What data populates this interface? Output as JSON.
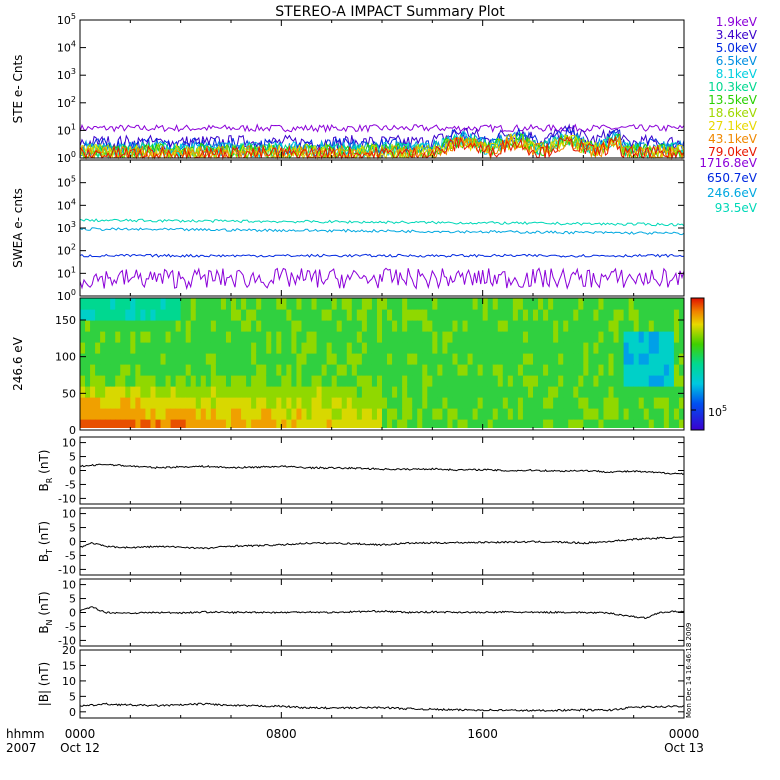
{
  "title": "STEREO-A IMPACT Summary Plot",
  "colors": {
    "trace": "#000000",
    "ste": [
      "#8B00D9",
      "#3A00CC",
      "#0028E0",
      "#0090E0",
      "#00CFE0",
      "#00D890",
      "#28D000",
      "#A0D800",
      "#E8D800",
      "#F08800",
      "#E81800"
    ],
    "swea": [
      "#8B00D9",
      "#0028E0",
      "#00A8E0",
      "#00D8B8"
    ]
  },
  "axis": {
    "time_label": "hhmm",
    "year": "2007",
    "ticks": [
      {
        "time": "0000",
        "date": "Oct 12"
      },
      {
        "time": "0800",
        "date": ""
      },
      {
        "time": "1600",
        "date": ""
      },
      {
        "time": "0000",
        "date": "Oct 13"
      }
    ]
  },
  "stamp": "Mon Dec 14 16:46:18 2009",
  "colorbar": {
    "tick_label": "10",
    "tick_exp": "5"
  },
  "chart_data": [
    {
      "type": "line",
      "yscale": "log",
      "ylabel": "STE e- Cnts",
      "ylim": [
        1,
        100000
      ],
      "yticks": [
        {
          "base": "10",
          "exp": "0"
        },
        {
          "base": "10",
          "exp": "1"
        },
        {
          "base": "10",
          "exp": "2"
        },
        {
          "base": "10",
          "exp": "3"
        },
        {
          "base": "10",
          "exp": "4"
        },
        {
          "base": "10",
          "exp": "5"
        }
      ],
      "x_hours": [
        0,
        24
      ],
      "series": [
        {
          "name": "1.9keV",
          "level": 12
        },
        {
          "name": "3.4keV",
          "level": 3.6
        },
        {
          "name": "5.0keV",
          "level": 2.8
        },
        {
          "name": "6.5keV",
          "level": 2.2
        },
        {
          "name": "8.1keV",
          "level": 2.0
        },
        {
          "name": "10.3keV",
          "level": 1.9
        },
        {
          "name": "13.5keV",
          "level": 1.8
        },
        {
          "name": "18.6keV",
          "level": 1.7
        },
        {
          "name": "27.1keV",
          "level": 1.6
        },
        {
          "name": "43.1keV",
          "level": 1.5
        },
        {
          "name": "79.0keV",
          "level": 1.4
        }
      ]
    },
    {
      "type": "line",
      "yscale": "log",
      "ylabel": "SWEA e- cnts",
      "ylim": [
        1,
        1000000
      ],
      "yticks": [
        {
          "base": "10",
          "exp": "0"
        },
        {
          "base": "10",
          "exp": "1"
        },
        {
          "base": "10",
          "exp": "2"
        },
        {
          "base": "10",
          "exp": "3"
        },
        {
          "base": "10",
          "exp": "4"
        },
        {
          "base": "10",
          "exp": "5"
        }
      ],
      "x_hours": [
        0,
        24
      ],
      "series": [
        {
          "name": "1716.8eV",
          "level": 6
        },
        {
          "name": "650.7eV",
          "level": 60
        },
        {
          "name": "246.6eV",
          "level": 900
        },
        {
          "name": "93.5eV",
          "level": 2200
        }
      ]
    },
    {
      "type": "heatmap",
      "ylabel": "246.6 eV",
      "ylim": [
        0,
        180
      ],
      "yticks": [
        "0",
        "50",
        "100",
        "150"
      ],
      "x_hours": [
        0,
        24
      ]
    },
    {
      "type": "line",
      "ylabel_main": "B",
      "ylabel_sub": "R",
      "ylabel_unit": "(nT)",
      "ylim": [
        -12,
        12
      ],
      "yticks": [
        "-10",
        "-5",
        "0",
        "5",
        "10"
      ],
      "x_hours": [
        0,
        24
      ],
      "points": [
        [
          0,
          1.5
        ],
        [
          1,
          2.2
        ],
        [
          2,
          1.6
        ],
        [
          3,
          1.0
        ],
        [
          4,
          1.3
        ],
        [
          5,
          1.5
        ],
        [
          6,
          1.0
        ],
        [
          7,
          1.2
        ],
        [
          8,
          1.5
        ],
        [
          9,
          1.0
        ],
        [
          10,
          0.9
        ],
        [
          11,
          0.8
        ],
        [
          12,
          0.5
        ],
        [
          13,
          0.4
        ],
        [
          14,
          0.6
        ],
        [
          15,
          0.2
        ],
        [
          16,
          0.3
        ],
        [
          17,
          -0.1
        ],
        [
          18,
          0.1
        ],
        [
          19,
          -0.2
        ],
        [
          20,
          0.0
        ],
        [
          21,
          -0.5
        ],
        [
          22,
          -0.3
        ],
        [
          23,
          -0.8
        ],
        [
          24,
          -1.2
        ]
      ]
    },
    {
      "type": "line",
      "ylabel_main": "B",
      "ylabel_sub": "T",
      "ylabel_unit": "(nT)",
      "ylim": [
        -12,
        12
      ],
      "yticks": [
        "-10",
        "-5",
        "0",
        "5",
        "10"
      ],
      "x_hours": [
        0,
        24
      ],
      "points": [
        [
          0,
          -2.0
        ],
        [
          0.5,
          -0.5
        ],
        [
          1,
          -1.8
        ],
        [
          2,
          -2.2
        ],
        [
          3,
          -1.8
        ],
        [
          4,
          -2.0
        ],
        [
          5,
          -2.5
        ],
        [
          6,
          -1.6
        ],
        [
          7,
          -1.5
        ],
        [
          8,
          -1.2
        ],
        [
          9,
          -0.6
        ],
        [
          10,
          -0.6
        ],
        [
          11,
          -0.8
        ],
        [
          12,
          -1.2
        ],
        [
          13,
          -0.6
        ],
        [
          14,
          -0.5
        ],
        [
          15,
          -0.4
        ],
        [
          16,
          -0.3
        ],
        [
          17,
          -0.2
        ],
        [
          18,
          -0.1
        ],
        [
          19,
          -0.2
        ],
        [
          20,
          -0.6
        ],
        [
          21,
          0.0
        ],
        [
          22,
          0.8
        ],
        [
          23,
          1.2
        ],
        [
          24,
          1.5
        ]
      ]
    },
    {
      "type": "line",
      "ylabel_main": "B",
      "ylabel_sub": "N",
      "ylabel_unit": "(nT)",
      "ylim": [
        -12,
        12
      ],
      "yticks": [
        "-10",
        "-5",
        "0",
        "5",
        "10"
      ],
      "x_hours": [
        0,
        24
      ],
      "points": [
        [
          0,
          0.5
        ],
        [
          0.5,
          2.0
        ],
        [
          1,
          0.0
        ],
        [
          2,
          -0.2
        ],
        [
          3,
          0.0
        ],
        [
          4,
          -0.1
        ],
        [
          5,
          0.2
        ],
        [
          6,
          0.0
        ],
        [
          7,
          0.1
        ],
        [
          8,
          0.0
        ],
        [
          9,
          0.2
        ],
        [
          10,
          0.0
        ],
        [
          11,
          0.3
        ],
        [
          12,
          0.5
        ],
        [
          13,
          0.0
        ],
        [
          14,
          0.2
        ],
        [
          15,
          0.1
        ],
        [
          16,
          0.0
        ],
        [
          17,
          0.2
        ],
        [
          18,
          0.0
        ],
        [
          19,
          0.1
        ],
        [
          20,
          0.0
        ],
        [
          21,
          -0.2
        ],
        [
          22,
          -1.5
        ],
        [
          22.5,
          -2.0
        ],
        [
          23,
          0.0
        ],
        [
          24,
          0.5
        ]
      ]
    },
    {
      "type": "line",
      "ylabel_main": "|B|",
      "ylabel_sub": "",
      "ylabel_unit": "(nT)",
      "ylim": [
        -2,
        20
      ],
      "yticks": [
        "0",
        "5",
        "10",
        "15",
        "20"
      ],
      "x_hours": [
        0,
        24
      ],
      "points": [
        [
          0,
          1.8
        ],
        [
          1,
          2.5
        ],
        [
          2,
          2.2
        ],
        [
          3,
          2.0
        ],
        [
          4,
          2.2
        ],
        [
          5,
          2.6
        ],
        [
          6,
          2.0
        ],
        [
          7,
          1.9
        ],
        [
          8,
          1.8
        ],
        [
          9,
          1.3
        ],
        [
          10,
          1.2
        ],
        [
          11,
          1.3
        ],
        [
          12,
          1.4
        ],
        [
          13,
          1.0
        ],
        [
          14,
          0.8
        ],
        [
          15,
          0.6
        ],
        [
          16,
          0.6
        ],
        [
          17,
          0.5
        ],
        [
          18,
          0.4
        ],
        [
          19,
          0.5
        ],
        [
          20,
          0.6
        ],
        [
          21,
          0.5
        ],
        [
          22,
          1.5
        ],
        [
          23,
          1.6
        ],
        [
          24,
          1.8
        ]
      ]
    }
  ]
}
